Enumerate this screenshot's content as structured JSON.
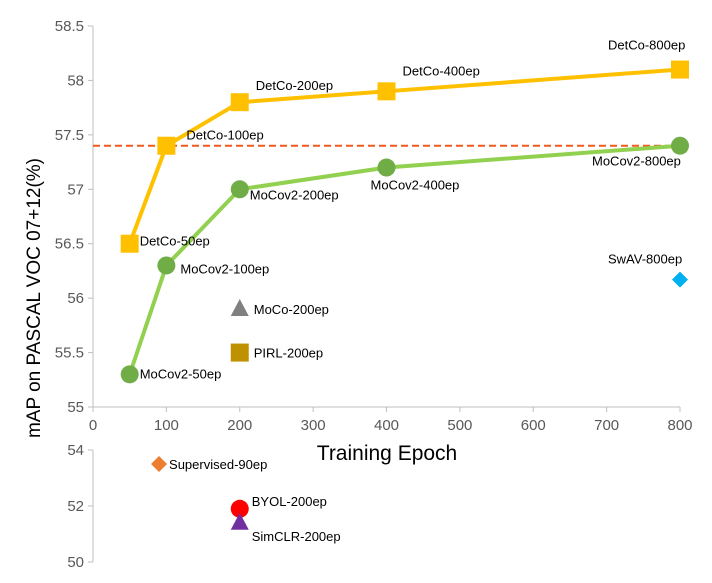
{
  "chart_data": {
    "type": "line",
    "xlabel": "Training Epoch",
    "ylabel": "mAP on PASCAL VOC 07+12(%)",
    "xlim": [
      0,
      800
    ],
    "x_ticks": [
      "0",
      "100",
      "200",
      "300",
      "400",
      "500",
      "600",
      "700",
      "800"
    ],
    "ylim_upper": [
      55,
      58.5
    ],
    "y_ticks_upper": [
      "55",
      "55.5",
      "56",
      "56.5",
      "57",
      "57.5",
      "58",
      "58.5"
    ],
    "ylim_lower": [
      50,
      54
    ],
    "y_ticks_lower": [
      "50",
      "52",
      "54"
    ],
    "grid": false,
    "reference_line": {
      "y": 57.4,
      "color": "#f05a1a",
      "style": "dashed"
    },
    "series": [
      {
        "color": "#ffc000",
        "marker": "square",
        "x": [
          50,
          100,
          200,
          400,
          800
        ],
        "y": [
          56.5,
          57.4,
          57.8,
          57.9,
          58.1
        ],
        "labels": [
          "DetCo-50ep",
          "DetCo-100ep",
          "DetCo-200ep",
          "DetCo-400ep",
          "DetCo-800ep"
        ]
      },
      {
        "color": "#92d050",
        "marker_color": "#70ad47",
        "marker": "circle",
        "x": [
          50,
          100,
          200,
          400,
          800
        ],
        "y": [
          55.3,
          56.3,
          57.0,
          57.2,
          57.4
        ],
        "labels": [
          "MoCov2-50ep",
          "MoCov2-100ep",
          "MoCov2-200ep",
          "MoCov2-400ep",
          "MoCov2-800ep"
        ]
      }
    ],
    "points": [
      {
        "label": "MoCo-200ep",
        "x": 200,
        "y": 55.9,
        "marker": "triangle",
        "color": "#808080"
      },
      {
        "label": "PIRL-200ep",
        "x": 200,
        "y": 55.5,
        "marker": "square",
        "color": "#bf9000"
      },
      {
        "label": "SwAV-800ep",
        "x": 800,
        "y": 56.17,
        "marker": "diamond",
        "color": "#00b0f0"
      },
      {
        "label": "Supervised-90ep",
        "x": 90,
        "y": 53.5,
        "marker": "diamond",
        "color": "#ed7d31"
      },
      {
        "label": "BYOL-200ep",
        "x": 200,
        "y": 51.9,
        "marker": "circle",
        "color": "#ff0000"
      },
      {
        "label": "SimCLR-200ep",
        "x": 200,
        "y": 51.4,
        "marker": "triangle",
        "color": "#7030a0"
      }
    ]
  }
}
